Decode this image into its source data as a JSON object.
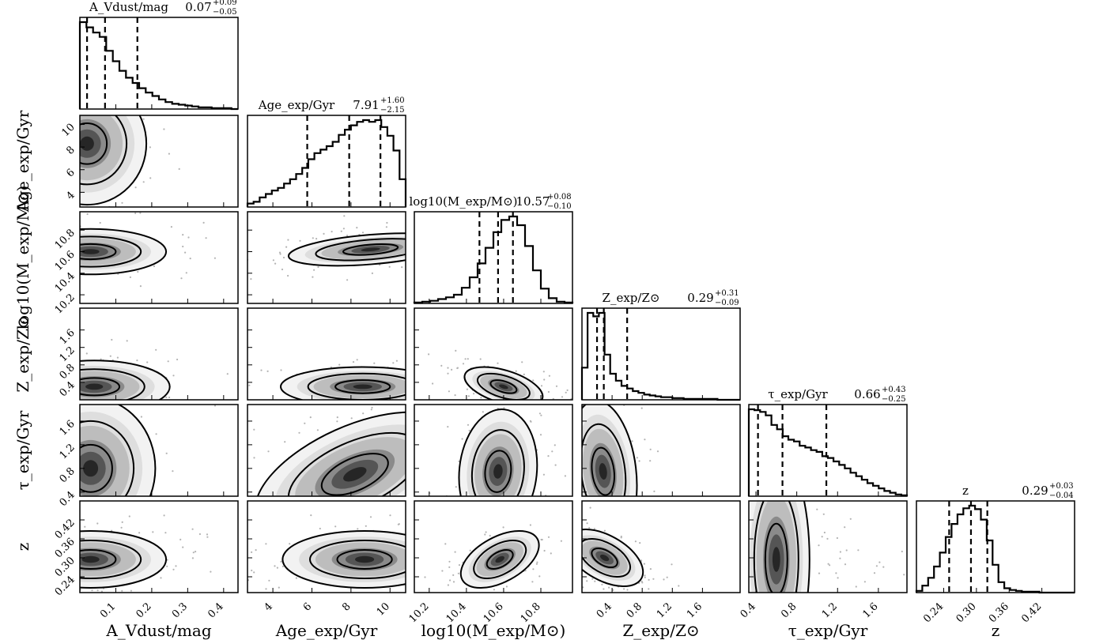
{
  "chart_data": {
    "type": "corner",
    "title": "",
    "parameters": [
      {
        "key": "av",
        "label": "A_Vdust/mag",
        "range": [
          0.0,
          0.44
        ],
        "ticks": [
          {
            "v": 0.1,
            "t": "0.1"
          },
          {
            "v": 0.2,
            "t": "0.2"
          },
          {
            "v": 0.3,
            "t": "0.3"
          },
          {
            "v": 0.4,
            "t": "0.4"
          }
        ],
        "title_text": "A_Vdust/mag",
        "median": "0.07",
        "plus": "+0.09",
        "minus": "−0.05",
        "quantiles": [
          0.02,
          0.07,
          0.16
        ],
        "hist": [
          100,
          94,
          88,
          83,
          67,
          55,
          44,
          36,
          30,
          24,
          19,
          15,
          11,
          8,
          6,
          5,
          4,
          3,
          2,
          2,
          1,
          1,
          1,
          0
        ]
      },
      {
        "key": "age",
        "label": "Age_exp/Gyr",
        "range": [
          2.7,
          10.8
        ],
        "ticks": [
          {
            "v": 4,
            "t": "4"
          },
          {
            "v": 6,
            "t": "6"
          },
          {
            "v": 8,
            "t": "8"
          },
          {
            "v": 10,
            "t": "10"
          }
        ],
        "title_text": "Age_exp/Gyr",
        "median": "7.91",
        "plus": "+1.60",
        "minus": "−2.15",
        "quantiles": [
          5.76,
          7.91,
          9.51
        ],
        "hist": [
          4,
          6,
          11,
          15,
          19,
          22,
          27,
          32,
          38,
          45,
          55,
          62,
          66,
          70,
          75,
          83,
          89,
          94,
          98,
          100,
          98,
          100,
          92,
          82,
          65,
          32
        ]
      },
      {
        "key": "mass",
        "label": "log10(M_exp/M⊙)",
        "range": [
          10.12,
          10.97
        ],
        "ticks": [
          {
            "v": 10.2,
            "t": "10.2"
          },
          {
            "v": 10.4,
            "t": "10.4"
          },
          {
            "v": 10.6,
            "t": "10.6"
          },
          {
            "v": 10.8,
            "t": "10.8"
          }
        ],
        "title_text": "log10(M_exp/M⊙)",
        "median": "10.57",
        "plus": "+0.08",
        "minus": "−0.10",
        "quantiles": [
          10.47,
          10.57,
          10.65
        ],
        "hist": [
          1,
          2,
          3,
          5,
          7,
          10,
          18,
          30,
          46,
          64,
          82,
          96,
          100,
          90,
          66,
          38,
          17,
          6,
          2,
          1
        ]
      },
      {
        "key": "z_met",
        "label": "Z_exp/Z⊙",
        "range": [
          0.0,
          2.1
        ],
        "ticks": [
          {
            "v": 0.4,
            "t": "0.4"
          },
          {
            "v": 0.8,
            "t": "0.8"
          },
          {
            "v": 1.2,
            "t": "1.2"
          },
          {
            "v": 1.6,
            "t": "1.6"
          }
        ],
        "title_text": "Z_exp/Z⊙",
        "median": "0.29",
        "plus": "+0.31",
        "minus": "−0.09",
        "quantiles": [
          0.2,
          0.29,
          0.6
        ],
        "hist": [
          37,
          100,
          96,
          100,
          52,
          30,
          22,
          16,
          13,
          10,
          8,
          6,
          5,
          4,
          3,
          3,
          2,
          2,
          1,
          1,
          1,
          1,
          1,
          1,
          0,
          0,
          0,
          0
        ]
      },
      {
        "key": "tau",
        "label": "τ_exp/Gyr",
        "range": [
          0.33,
          1.88
        ],
        "ticks": [
          {
            "v": 0.4,
            "t": "0.4"
          },
          {
            "v": 0.8,
            "t": "0.8"
          },
          {
            "v": 1.2,
            "t": "1.2"
          },
          {
            "v": 1.6,
            "t": "1.6"
          }
        ],
        "title_text": "τ_exp/Gyr",
        "median": "0.66",
        "plus": "+0.43",
        "minus": "−0.25",
        "quantiles": [
          0.42,
          0.66,
          1.09
        ],
        "hist": [
          100,
          99,
          97,
          93,
          82,
          77,
          69,
          65,
          63,
          58,
          56,
          53,
          51,
          46,
          44,
          40,
          36,
          32,
          27,
          23,
          19,
          15,
          12,
          9,
          6,
          4,
          2,
          1
        ]
      },
      {
        "key": "z",
        "label": "z",
        "range": [
          0.19,
          0.48
        ],
        "ticks": [
          {
            "v": 0.24,
            "t": "0.24"
          },
          {
            "v": 0.3,
            "t": "0.30"
          },
          {
            "v": 0.36,
            "t": "0.36"
          },
          {
            "v": 0.42,
            "t": "0.42"
          }
        ],
        "title_text": "z",
        "median": "0.29",
        "plus": "+0.03",
        "minus": "−0.04",
        "quantiles": [
          0.25,
          0.29,
          0.32
        ],
        "hist": [
          2,
          8,
          17,
          30,
          46,
          64,
          79,
          90,
          97,
          100,
          96,
          84,
          60,
          32,
          12,
          5,
          3,
          2,
          1,
          1,
          1,
          0,
          0,
          0,
          0,
          0,
          0
        ]
      }
    ],
    "pairs": {
      "1,0": {
        "mean": [
          0.02,
          8.3
        ],
        "sd": [
          0.055,
          1.8
        ],
        "rho": 0.0
      },
      "2,0": {
        "mean": [
          0.03,
          10.6
        ],
        "sd": [
          0.07,
          0.07
        ],
        "rho": 0.0
      },
      "3,0": {
        "mean": [
          0.04,
          0.3
        ],
        "sd": [
          0.07,
          0.2
        ],
        "rho": 0.0
      },
      "4,0": {
        "mean": [
          0.03,
          0.8
        ],
        "sd": [
          0.06,
          0.4
        ],
        "rho": 0.0
      },
      "5,0": {
        "mean": [
          0.03,
          0.295
        ],
        "sd": [
          0.07,
          0.03
        ],
        "rho": 0.0
      },
      "2,1": {
        "mean": [
          9.0,
          10.62
        ],
        "sd": [
          1.4,
          0.05
        ],
        "rho": 0.4
      },
      "3,1": {
        "mean": [
          8.6,
          0.3
        ],
        "sd": [
          1.4,
          0.15
        ],
        "rho": 0.0
      },
      "4,1": {
        "mean": [
          8.2,
          0.7
        ],
        "sd": [
          1.7,
          0.35
        ],
        "rho": 0.55
      },
      "5,1": {
        "mean": [
          8.7,
          0.295
        ],
        "sd": [
          1.4,
          0.03
        ],
        "rho": 0.0
      },
      "3,2": {
        "mean": [
          10.6,
          0.3
        ],
        "sd": [
          0.07,
          0.15
        ],
        "rho": -0.5
      },
      "4,2": {
        "mean": [
          10.57,
          0.75
        ],
        "sd": [
          0.07,
          0.35
        ],
        "rho": 0.1
      },
      "5,2": {
        "mean": [
          10.58,
          0.295
        ],
        "sd": [
          0.07,
          0.03
        ],
        "rho": 0.5
      },
      "4,3": {
        "mean": [
          0.28,
          0.75
        ],
        "sd": [
          0.15,
          0.4
        ],
        "rho": -0.2
      },
      "5,3": {
        "mean": [
          0.3,
          0.3
        ],
        "sd": [
          0.17,
          0.03
        ],
        "rho": -0.5
      },
      "5,4": {
        "mean": [
          0.6,
          0.295
        ],
        "sd": [
          0.35,
          0.035
        ],
        "rho": 0.0
      }
    },
    "contour_levels": [
      "39%",
      "86%",
      "99%"
    ],
    "colors": {
      "line": "#000000",
      "fill": "#262626",
      "points": "#b3b3b3"
    }
  }
}
